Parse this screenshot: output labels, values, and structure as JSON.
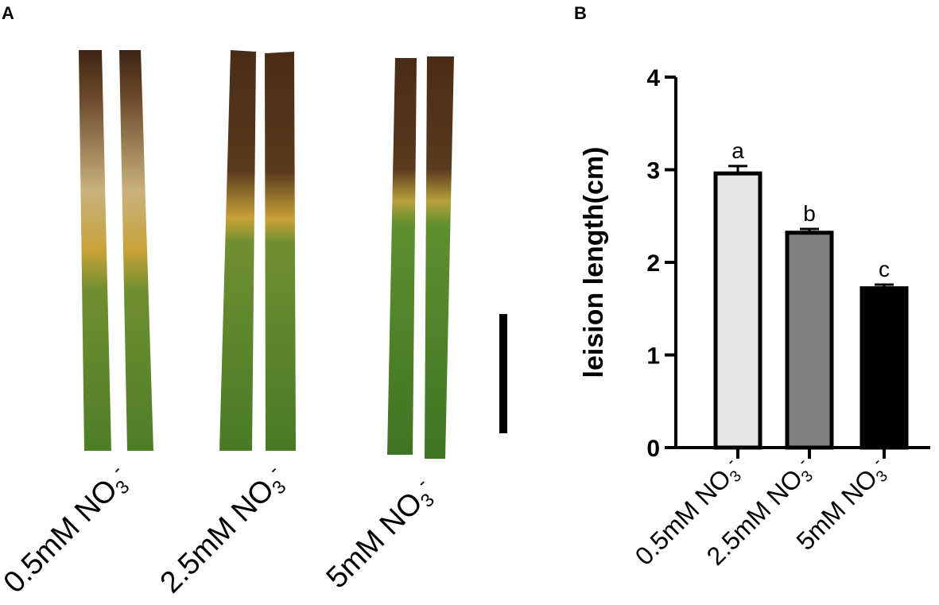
{
  "panels": {
    "a": {
      "letter": "A"
    },
    "b": {
      "letter": "B"
    }
  },
  "photo": {
    "labels": [
      "0.5mM NO3-",
      "2.5mM NO3-",
      "5mM NO3-"
    ],
    "leaf_colors": {
      "green": "#5b8a2e",
      "dark_green": "#3f6b22",
      "yellow": "#c9a238",
      "tan": "#c8b27e",
      "brown": "#3d2414"
    }
  },
  "chart_data": {
    "type": "bar",
    "categories": [
      "0.5mM NO3-",
      "2.5mM NO3-",
      "5mM NO3-"
    ],
    "values": [
      2.96,
      2.32,
      1.72
    ],
    "errors": [
      0.08,
      0.04,
      0.04
    ],
    "significance": [
      "a",
      "b",
      "c"
    ],
    "bar_colors": [
      "#e6e6e6",
      "#808080",
      "#000000"
    ],
    "xlabel": "",
    "ylabel": "leision length(cm)",
    "ylim": [
      0,
      4
    ],
    "yticks": [
      "0",
      "1",
      "2",
      "3",
      "4"
    ],
    "grid": false,
    "legend": "none"
  }
}
